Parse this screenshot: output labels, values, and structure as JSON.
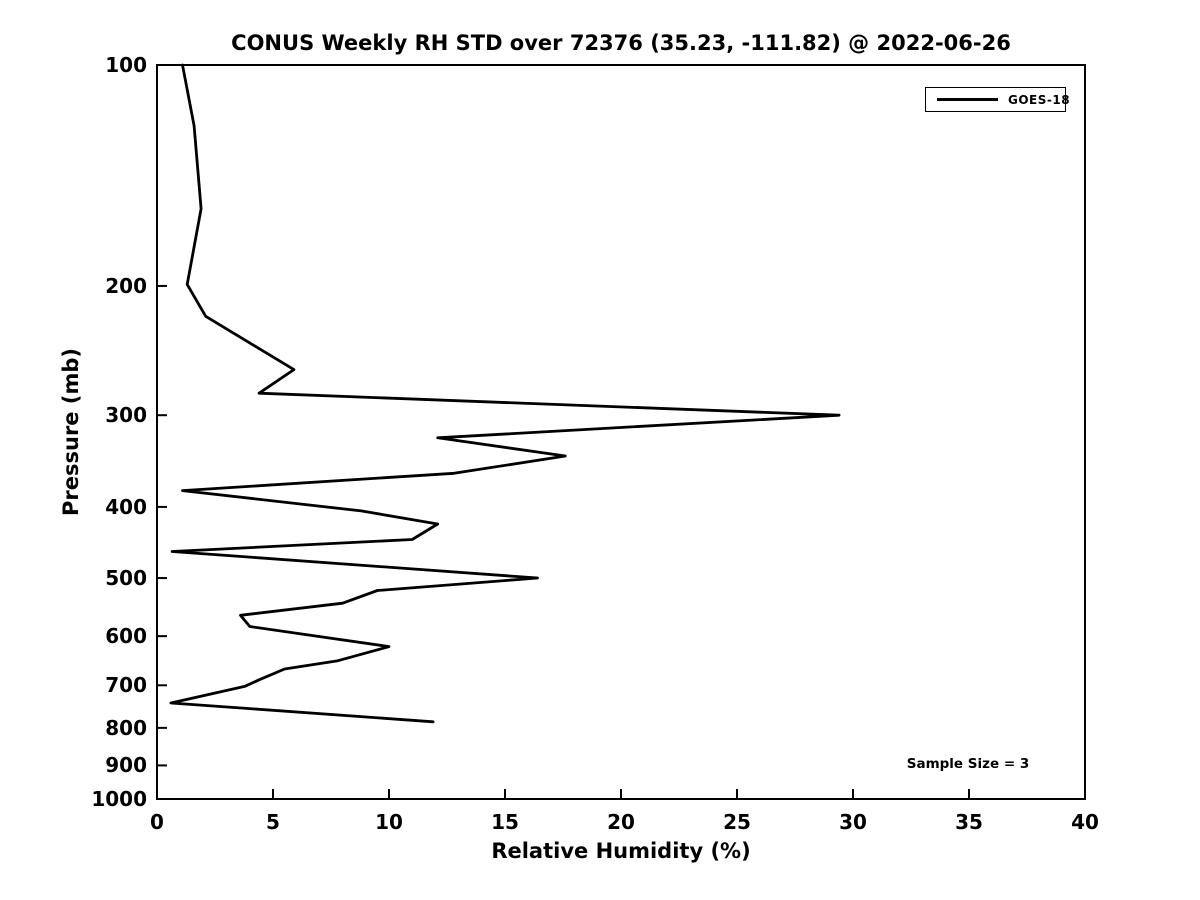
{
  "title": "CONUS Weekly RH STD over 72376 (35.23, -111.82) @ 2022-06-26",
  "axes": {
    "xlabel": "Relative Humidity (%)",
    "ylabel": "Pressure (mb)"
  },
  "legend": {
    "entries": [
      {
        "label": "GOES-18",
        "color": "#000000"
      }
    ]
  },
  "annotation": {
    "text": "Sample Size = 3"
  },
  "colors": {
    "foreground": "#000000",
    "background": "#ffffff"
  },
  "chart_data": {
    "type": "line",
    "title": "CONUS Weekly RH STD over 72376 (35.23, -111.82) @ 2022-06-26",
    "xlabel": "Relative Humidity (%)",
    "ylabel": "Pressure (mb)",
    "xlim": [
      0,
      40
    ],
    "ylim": [
      1000,
      100
    ],
    "y_scale": "log",
    "y_inverted": true,
    "grid": false,
    "legend_position": "upper right",
    "x_ticks": [
      0,
      5,
      10,
      15,
      20,
      25,
      30,
      35,
      40
    ],
    "y_ticks": [
      100,
      200,
      300,
      400,
      500,
      600,
      700,
      800,
      900,
      1000
    ],
    "annotations": [
      {
        "text": "Sample Size = 3",
        "approx_position": {
          "x": 28,
          "y": 900
        }
      }
    ],
    "series": [
      {
        "name": "GOES-18",
        "color": "#000000",
        "line_width": 2.8,
        "pressure_mb": [
          100,
          121,
          157,
          199,
          220,
          260,
          280,
          300,
          322,
          341,
          360,
          380,
          405,
          422,
          443,
          460,
          500,
          520,
          541,
          562,
          582,
          620,
          648,
          665,
          688,
          702,
          740,
          785
        ],
        "rh_std_percent": [
          1.1,
          1.6,
          1.9,
          1.3,
          2.1,
          5.9,
          4.4,
          29.4,
          12.1,
          17.6,
          12.8,
          1.1,
          8.8,
          12.1,
          11.0,
          0.65,
          16.4,
          9.5,
          8.0,
          3.6,
          4.0,
          10.0,
          7.8,
          5.5,
          4.4,
          3.8,
          0.6,
          11.9
        ]
      }
    ]
  }
}
